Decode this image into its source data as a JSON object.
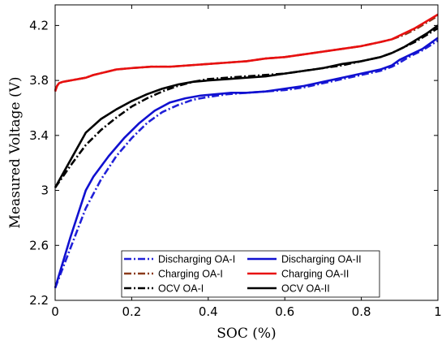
{
  "chart_data": {
    "type": "line",
    "title": "",
    "xlabel": "SOC (%)",
    "ylabel": "Measured Voltage (V)",
    "xlim": [
      0,
      1
    ],
    "ylim": [
      2.2,
      4.35
    ],
    "x_ticks": [
      0,
      0.2,
      0.4,
      0.6,
      0.8,
      1
    ],
    "x_tick_labels": [
      "0",
      "0.2",
      "0.4",
      "0.6",
      "0.8",
      "1"
    ],
    "y_ticks": [
      2.2,
      2.6,
      3.0,
      3.4,
      3.8,
      4.2
    ],
    "y_tick_labels": [
      "2.2",
      "2.6",
      "3",
      "3.4",
      "3.8",
      "4.2"
    ],
    "grid": false,
    "legend_position": "bottom-right",
    "series": [
      {
        "name": "Discharging OA-I",
        "color": "#2020d8",
        "dash": "dashdot",
        "x": [
          0,
          0.04,
          0.08,
          0.12,
          0.16,
          0.2,
          0.24,
          0.28,
          0.32,
          0.36,
          0.4,
          0.45,
          0.5,
          0.55,
          0.6,
          0.65,
          0.7,
          0.75,
          0.8,
          0.85,
          0.88,
          0.9,
          0.93,
          0.96,
          1.0
        ],
        "y": [
          2.29,
          2.58,
          2.87,
          3.08,
          3.25,
          3.38,
          3.49,
          3.57,
          3.62,
          3.66,
          3.68,
          3.7,
          3.71,
          3.72,
          3.73,
          3.75,
          3.78,
          3.81,
          3.84,
          3.87,
          3.9,
          3.93,
          3.98,
          4.02,
          4.09
        ]
      },
      {
        "name": "Discharging OA-II",
        "color": "#1010d0",
        "dash": "solid",
        "x": [
          0,
          0.04,
          0.08,
          0.1,
          0.14,
          0.18,
          0.22,
          0.26,
          0.3,
          0.34,
          0.38,
          0.42,
          0.46,
          0.5,
          0.55,
          0.6,
          0.65,
          0.7,
          0.75,
          0.8,
          0.85,
          0.88,
          0.9,
          0.93,
          0.96,
          1.0
        ],
        "y": [
          2.29,
          2.66,
          3.0,
          3.1,
          3.25,
          3.38,
          3.49,
          3.58,
          3.64,
          3.67,
          3.69,
          3.7,
          3.71,
          3.71,
          3.72,
          3.74,
          3.76,
          3.79,
          3.82,
          3.85,
          3.88,
          3.91,
          3.95,
          3.99,
          4.03,
          4.11
        ]
      },
      {
        "name": "Charging OA-I",
        "color": "#8b3a1a",
        "dash": "dashdot",
        "x": [
          0,
          0.005,
          0.01,
          0.02,
          0.04,
          0.06,
          0.08,
          0.1,
          0.13,
          0.16,
          0.2,
          0.25,
          0.3,
          0.35,
          0.4,
          0.45,
          0.5,
          0.55,
          0.6,
          0.65,
          0.7,
          0.75,
          0.8,
          0.85,
          0.88,
          0.91,
          0.94,
          0.97,
          1.0
        ],
        "y": [
          3.73,
          3.76,
          3.78,
          3.79,
          3.8,
          3.81,
          3.82,
          3.84,
          3.86,
          3.88,
          3.89,
          3.9,
          3.9,
          3.91,
          3.92,
          3.93,
          3.94,
          3.96,
          3.97,
          3.99,
          4.01,
          4.03,
          4.05,
          4.08,
          4.1,
          4.13,
          4.17,
          4.22,
          4.27
        ]
      },
      {
        "name": "Charging OA-II",
        "color": "#e81010",
        "dash": "solid",
        "x": [
          0,
          0.005,
          0.01,
          0.02,
          0.04,
          0.06,
          0.08,
          0.1,
          0.13,
          0.16,
          0.2,
          0.25,
          0.3,
          0.35,
          0.4,
          0.45,
          0.5,
          0.55,
          0.6,
          0.65,
          0.7,
          0.75,
          0.8,
          0.85,
          0.88,
          0.91,
          0.94,
          0.97,
          1.0
        ],
        "y": [
          3.72,
          3.76,
          3.78,
          3.79,
          3.8,
          3.81,
          3.82,
          3.84,
          3.86,
          3.88,
          3.89,
          3.9,
          3.9,
          3.91,
          3.92,
          3.93,
          3.94,
          3.96,
          3.97,
          3.99,
          4.01,
          4.03,
          4.05,
          4.08,
          4.1,
          4.14,
          4.18,
          4.23,
          4.28
        ]
      },
      {
        "name": "OCV OA-I",
        "color": "#000000",
        "dash": "dashdot",
        "x": [
          0,
          0.04,
          0.08,
          0.12,
          0.16,
          0.2,
          0.24,
          0.28,
          0.32,
          0.36,
          0.4,
          0.45,
          0.5,
          0.55,
          0.6,
          0.65,
          0.7,
          0.75,
          0.8,
          0.85,
          0.88,
          0.91,
          0.94,
          0.97,
          1.0
        ],
        "y": [
          3.02,
          3.18,
          3.33,
          3.44,
          3.53,
          3.61,
          3.67,
          3.72,
          3.76,
          3.79,
          3.81,
          3.82,
          3.83,
          3.84,
          3.85,
          3.87,
          3.89,
          3.91,
          3.94,
          3.97,
          4.0,
          4.04,
          4.08,
          4.13,
          4.18
        ]
      },
      {
        "name": "OCV OA-II",
        "color": "#000000",
        "dash": "solid",
        "x": [
          0,
          0.04,
          0.08,
          0.12,
          0.16,
          0.2,
          0.24,
          0.28,
          0.32,
          0.36,
          0.4,
          0.45,
          0.5,
          0.55,
          0.6,
          0.65,
          0.7,
          0.75,
          0.8,
          0.85,
          0.88,
          0.91,
          0.94,
          0.97,
          1.0
        ],
        "y": [
          3.02,
          3.22,
          3.42,
          3.52,
          3.59,
          3.65,
          3.7,
          3.74,
          3.77,
          3.79,
          3.8,
          3.81,
          3.82,
          3.83,
          3.85,
          3.87,
          3.89,
          3.92,
          3.94,
          3.97,
          4.0,
          4.04,
          4.09,
          4.14,
          4.2
        ]
      }
    ],
    "legend_order": [
      0,
      1,
      2,
      3,
      4,
      5
    ]
  }
}
